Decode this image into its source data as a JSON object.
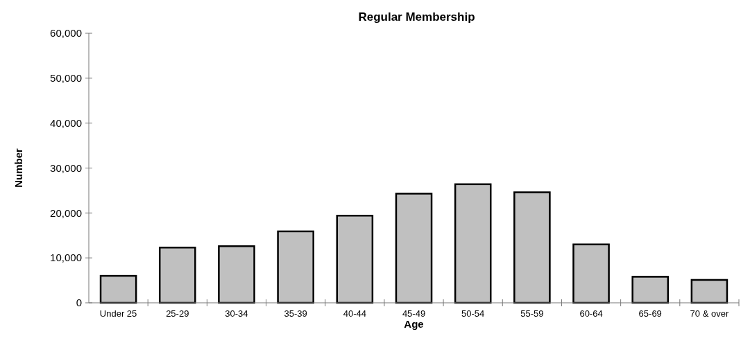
{
  "chart_data": {
    "type": "bar",
    "title": "Regular Membership",
    "xlabel": "Age",
    "ylabel": "Number",
    "categories": [
      "Under 25",
      "25-29",
      "30-34",
      "35-39",
      "40-44",
      "45-49",
      "50-54",
      "55-59",
      "60-64",
      "65-69",
      "70 & over"
    ],
    "values": [
      6000,
      12300,
      12600,
      15900,
      19400,
      24300,
      26400,
      24600,
      13000,
      5800,
      5100
    ],
    "color": "#c0c0c0",
    "ylim": [
      0,
      60000
    ],
    "yticks": [
      {
        "value": 0,
        "label": "0"
      },
      {
        "value": 10000,
        "label": "10,000"
      },
      {
        "value": 20000,
        "label": "20,000"
      },
      {
        "value": 30000,
        "label": "30,000"
      },
      {
        "value": 40000,
        "label": "40,000"
      },
      {
        "value": 50000,
        "label": "50,000"
      },
      {
        "value": 60000,
        "label": "60,000"
      }
    ],
    "grid": false
  }
}
